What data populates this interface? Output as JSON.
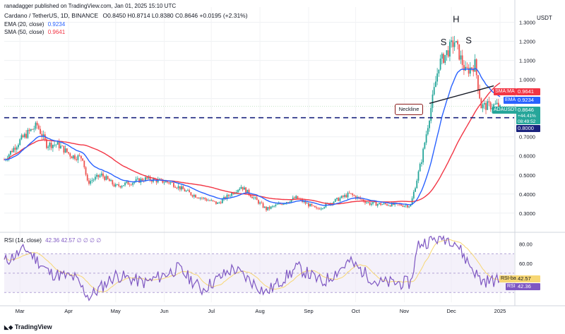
{
  "header": {
    "publisher": "ranadagger published on TradingView.com, Jan 01, 2025 15:10 UTC",
    "symbol": "Cardano / TetherUS, 1D, BINANCE",
    "ohlc": "O0.8450 H0.8714 L0.8380 C0.8646 +0.0195 (+2.31%)",
    "ema_label": "EMA (20, close)",
    "ema_value": "0.9234",
    "sma_label": "SMA (50, close)",
    "sma_value": "0.9641",
    "rsi_label": "RSI (14, close)",
    "rsi_values": "42.36  42.57  ∅  ∅  ∅  ∅"
  },
  "colors": {
    "up": "#26a69a",
    "down": "#ef5350",
    "ema": "#2962ff",
    "sma": "#f23645",
    "level": "#1a237e",
    "rsi": "#7e57c2",
    "rsi_ma": "#f7d774",
    "neckline": "#131722"
  },
  "chart_data": [
    {
      "type": "candlestick",
      "title": "Cardano / TetherUS, 1D, BINANCE",
      "currency": "USDT",
      "ylim": [
        0.24,
        1.38
      ],
      "y_ticks": [
        "1.3000",
        "1.2000",
        "1.1000",
        "1.0000",
        "0.9000",
        "0.8000",
        "0.7000",
        "0.6000",
        "0.5000",
        "0.4000",
        "0.3000"
      ],
      "x_ticks": [
        "Mar",
        "Apr",
        "May",
        "Jun",
        "Jul",
        "Aug",
        "Sep",
        "Oct",
        "Nov",
        "Dec",
        "2025"
      ],
      "close_path": [
        [
          "2024-02-20",
          0.58
        ],
        [
          "2024-03-01",
          0.68
        ],
        [
          "2024-03-06",
          0.72
        ],
        [
          "2024-03-12",
          0.76
        ],
        [
          "2024-03-18",
          0.66
        ],
        [
          "2024-03-25",
          0.66
        ],
        [
          "2024-04-03",
          0.6
        ],
        [
          "2024-04-10",
          0.59
        ],
        [
          "2024-04-13",
          0.46
        ],
        [
          "2024-04-22",
          0.5
        ],
        [
          "2024-05-01",
          0.44
        ],
        [
          "2024-05-20",
          0.48
        ],
        [
          "2024-06-05",
          0.46
        ],
        [
          "2024-06-18",
          0.4
        ],
        [
          "2024-07-05",
          0.35
        ],
        [
          "2024-07-20",
          0.44
        ],
        [
          "2024-08-05",
          0.32
        ],
        [
          "2024-08-24",
          0.38
        ],
        [
          "2024-09-06",
          0.32
        ],
        [
          "2024-09-27",
          0.4
        ],
        [
          "2024-10-10",
          0.35
        ],
        [
          "2024-11-05",
          0.34
        ],
        [
          "2024-11-12",
          0.58
        ],
        [
          "2024-11-23",
          1.08
        ],
        [
          "2024-12-03",
          1.2
        ],
        [
          "2024-12-10",
          1.04
        ],
        [
          "2024-12-16",
          1.08
        ],
        [
          "2024-12-20",
          0.86
        ],
        [
          "2025-01-01",
          0.8646
        ]
      ],
      "last_close": 0.8646,
      "change": "+0.0195 (+2.31%)",
      "series": [
        {
          "name": "EMA",
          "period": 20,
          "last": 0.9234
        },
        {
          "name": "SMA",
          "period": 50,
          "last": 0.9641
        }
      ],
      "horizontal_level": 0.8,
      "annotations": [
        "S",
        "H",
        "S",
        "Neckline"
      ],
      "price_tags": [
        {
          "name": "SMA:MA",
          "value": "0.9641"
        },
        {
          "name": "EMA",
          "value": "0.9234"
        },
        {
          "name": "ADAUSDT",
          "value": "0.8646",
          "extra": [
            "+44.41%",
            "08:49:52"
          ]
        },
        {
          "name": "",
          "value": "0.8000"
        }
      ]
    },
    {
      "type": "line",
      "title": "RSI (14, close)",
      "ylim": [
        20,
        90
      ],
      "y_ticks": [
        "80.00",
        "60.00"
      ],
      "bands": [
        30,
        70
      ],
      "series": [
        {
          "name": "RSI",
          "last": 42.36
        },
        {
          "name": "RSI-based MA",
          "last": 42.57
        }
      ],
      "path": [
        [
          "2024-02-20",
          62
        ],
        [
          "2024-03-05",
          75
        ],
        [
          "2024-03-20",
          50
        ],
        [
          "2024-04-05",
          45
        ],
        [
          "2024-04-14",
          25
        ],
        [
          "2024-05-01",
          48
        ],
        [
          "2024-05-20",
          40
        ],
        [
          "2024-06-10",
          55
        ],
        [
          "2024-06-25",
          33
        ],
        [
          "2024-07-15",
          55
        ],
        [
          "2024-08-05",
          30
        ],
        [
          "2024-08-25",
          56
        ],
        [
          "2024-09-10",
          40
        ],
        [
          "2024-09-27",
          62
        ],
        [
          "2024-10-15",
          40
        ],
        [
          "2024-11-05",
          40
        ],
        [
          "2024-11-10",
          80
        ],
        [
          "2024-11-25",
          87
        ],
        [
          "2024-12-03",
          84
        ],
        [
          "2024-12-10",
          65
        ],
        [
          "2024-12-20",
          42
        ],
        [
          "2025-01-01",
          42.36
        ]
      ]
    }
  ],
  "logo_text": "TradingView",
  "currency_label": "USDT"
}
